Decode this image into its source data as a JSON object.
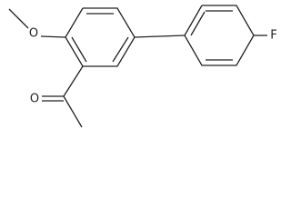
{
  "atoms": {
    "methoxy_oxygen": "O",
    "fluorine": "F",
    "carbonyl_oxygen": "O"
  }
}
